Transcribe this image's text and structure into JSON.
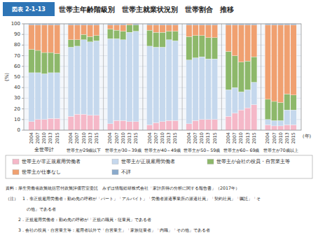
{
  "chart_data": {
    "type": "bar",
    "stacked": true,
    "title": "世帯主年齢階級別　世帯主就業状況別　世帯割合　推移",
    "ylabel": "(%)",
    "annotations": [
      "図表 2-1-13",
      "(年)",
      "資料：厚生労働省政策統括官付政策評価官室委託　みずほ情報総研株式会社「家計所得の分析に関する報告書」（2017年）",
      "（注）　1．非正規雇用労働者：勤め先の呼称が「パート」「アルバイト」「労働者派遣事業所の派遣社員」「契約社員」「嘱託」「そ",
      "　　　　　の他」である者",
      "　　　2．正規雇用労働者：勤め先の呼称が「正規の職員・従業員」である者",
      "　　　3．会社の役員・自営業主等：雇用者以外で「自営業主」「家族従業者」「内職」「その他」である者"
    ],
    "groups": [
      "全世帯計",
      "世帯主が29歳以下",
      "世帯主が30～39歳",
      "世帯主が40～49歳",
      "世帯主が50～59歳",
      "世帯主が60～69歳",
      "世帯主が70歳以上"
    ],
    "categories": [
      "2004",
      "2007",
      "2010",
      "2013",
      "2015",
      "2004",
      "2007",
      "2010",
      "2013",
      "2015",
      "2004",
      "2007",
      "2010",
      "2013",
      "2015",
      "2004",
      "2007",
      "2010",
      "2013",
      "2015",
      "2004",
      "2007",
      "2010",
      "2013",
      "2015",
      "2004",
      "2007",
      "2010",
      "2013",
      "2015",
      "2004",
      "2007",
      "2010",
      "2013",
      "2015"
    ],
    "series": [
      {
        "name": "世帯主が非正規雇用労働者",
        "color": "#f5b8c8",
        "values": [
          8,
          10,
          10,
          11,
          11,
          13,
          15,
          15,
          14,
          14,
          6,
          9,
          9,
          8,
          8,
          5,
          7,
          8,
          9,
          9,
          6,
          9,
          10,
          10,
          10,
          13,
          16,
          19,
          21,
          24,
          5,
          4,
          4,
          5,
          5
        ]
      },
      {
        "name": "世帯主が正規雇用労働者",
        "color": "#c5d8ed",
        "values": [
          46,
          44,
          43,
          43,
          43,
          65,
          64,
          70,
          69,
          70,
          80,
          77,
          76,
          84,
          85,
          74,
          71,
          70,
          76,
          75,
          60,
          59,
          59,
          57,
          57,
          25,
          24,
          17,
          17,
          21,
          5,
          5,
          5,
          14,
          14
        ]
      },
      {
        "name": "世帯主が会社の役員・自営業主等",
        "color": "#8db86a",
        "values": [
          22,
          21,
          20,
          19,
          18,
          7,
          6,
          5,
          5,
          5,
          9,
          8,
          8,
          7,
          6,
          15,
          14,
          14,
          8,
          9,
          22,
          21,
          20,
          20,
          20,
          36,
          30,
          28,
          27,
          24,
          19,
          18,
          17,
          15,
          14
        ]
      },
      {
        "name": "世帯主が仕事なし",
        "color": "#f0a070",
        "values": [
          23,
          24,
          26,
          26,
          27,
          14,
          14,
          9,
          11,
          10,
          4,
          5,
          6,
          1,
          0,
          5,
          7,
          7,
          6,
          6,
          11,
          10,
          10,
          12,
          12,
          25,
          29,
          35,
          34,
          30,
          70,
          72,
          73,
          65,
          66
        ]
      },
      {
        "name": "不詳",
        "color": "#8aaacc",
        "values": [
          1,
          1,
          1,
          1,
          1,
          1,
          1,
          1,
          1,
          1,
          1,
          1,
          1,
          0,
          1,
          1,
          1,
          1,
          1,
          1,
          1,
          1,
          1,
          1,
          1,
          1,
          1,
          1,
          1,
          1,
          1,
          1,
          1,
          1,
          1
        ]
      }
    ],
    "ylim": [
      0,
      100
    ],
    "yticks": [
      0,
      10,
      20,
      30,
      40,
      50,
      60,
      70,
      80,
      90,
      100
    ],
    "grid": true,
    "legend": "bottom"
  }
}
